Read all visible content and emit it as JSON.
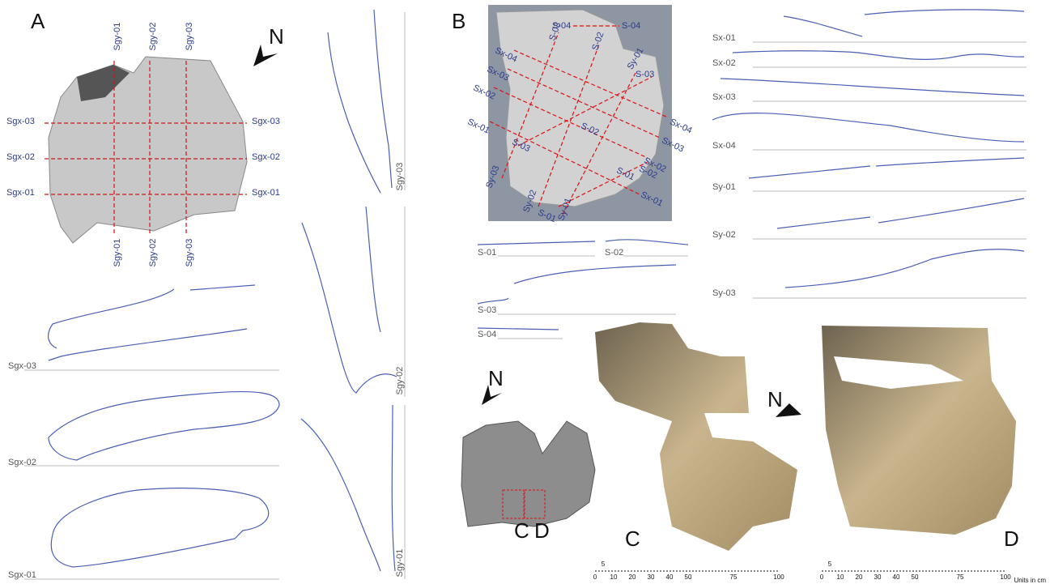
{
  "panel_a": {
    "label": "A",
    "north": "N",
    "sgy_top": [
      "Sgy-01",
      "Sgy-02",
      "Sgy-03"
    ],
    "sgy_bottom": [
      "Sgy-01",
      "Sgy-02",
      "Sgy-03"
    ],
    "sgx_left": [
      "Sgx-03",
      "Sgx-02",
      "Sgx-01"
    ],
    "sgx_right": [
      "Sgx-03",
      "Sgx-02",
      "Sgx-01"
    ],
    "x_profiles": [
      "Sgx-03",
      "Sgx-02",
      "Sgx-01"
    ],
    "y_profiles": [
      "Sgy-03",
      "Sgy-02",
      "Sgy-01"
    ]
  },
  "panel_b": {
    "label": "B",
    "map_labels": [
      "S-04",
      "S-04",
      "S-03",
      "S-02",
      "Sx-04",
      "Sx-03",
      "Sx-02",
      "Sx-01",
      "Sy-01",
      "S-03",
      "Sx-04",
      "Sx-03",
      "S-02",
      "S-03",
      "Sx-02",
      "S-02",
      "S-01",
      "Sx-01",
      "Sy-03",
      "Sy-02",
      "S-01",
      "Sy-01"
    ],
    "profiles": [
      "Sx-01",
      "Sx-02",
      "Sx-03",
      "Sx-04",
      "Sy-01",
      "Sy-02",
      "Sy-03"
    ],
    "s_profiles": [
      "S-01",
      "S-02",
      "S-03",
      "S-04"
    ]
  },
  "panel_cd": {
    "north": "N",
    "inset_labels": [
      "C",
      "D"
    ],
    "label_c": "C",
    "label_d": "D",
    "north_d": "N",
    "scale_c": {
      "minor": "5",
      "ticks": [
        "0",
        "10",
        "20",
        "30",
        "40",
        "50",
        "75",
        "100"
      ]
    },
    "scale_d": {
      "minor": "5",
      "ticks": [
        "0",
        "10",
        "20",
        "30",
        "40",
        "50",
        "75",
        "100"
      ]
    },
    "units": "Units in cm"
  }
}
